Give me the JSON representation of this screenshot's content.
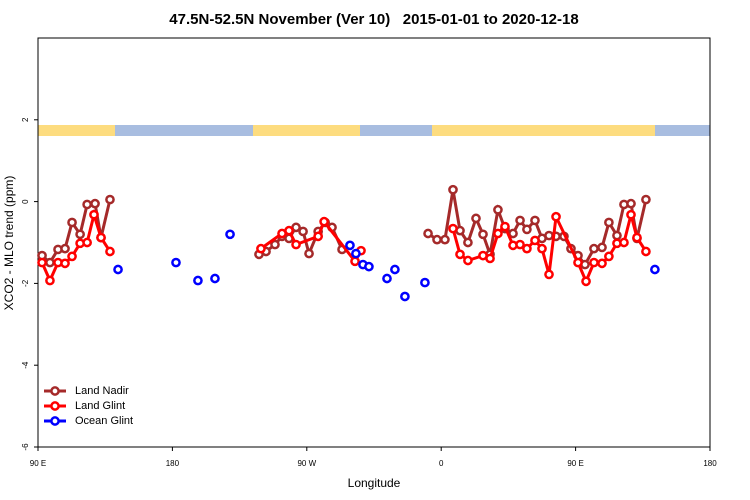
{
  "chart_data": {
    "type": "line",
    "title": "47.5N-52.5N November (Ver 10)   2015-01-01 to 2020-12-18",
    "x_label": "Longitude",
    "y_label": "XCO2 - MLO trend (ppm)",
    "xlim": [
      90,
      540
    ],
    "ylim": [
      -6,
      4
    ],
    "xticks": [
      {
        "value": 90,
        "label": "90 E"
      },
      180,
      {
        "value": 270,
        "label": "90 W"
      },
      {
        "value": 360,
        "label": "0"
      },
      {
        "value": 450,
        "label": "90 E"
      },
      {
        "value": 540,
        "label": "180"
      }
    ],
    "yticks": [
      -6,
      -4,
      -2,
      0,
      2
    ],
    "legend": "lower left",
    "series": [
      {
        "name": "Land Nadir",
        "color": "#a52a2a",
        "lines": true,
        "x": [
          92.7,
          98.0,
          103.4,
          108.1,
          112.8,
          118.2,
          122.9,
          128.2,
          132.2,
          138.2,
          null,
          238.0,
          242.7,
          248.7,
          253.4,
          258.1,
          262.8,
          267.5,
          271.5,
          277.6,
          282.3,
          286.9,
          293.6,
          null,
          351.2,
          357.2,
          362.5,
          367.9,
          372.6,
          377.9,
          383.3,
          388.0,
          392.7,
          398.0,
          402.7,
          408.1,
          412.8,
          417.4,
          422.8,
          427.5,
          432.2,
          436.9,
          442.2,
          446.9,
          451.6,
          456.3,
          462.3,
          467.7,
          472.3,
          477.7,
          482.4,
          487.1,
          491.1,
          497.1
        ],
        "values": [
          -1.32,
          -1.49,
          -1.17,
          -1.15,
          -0.51,
          -0.8,
          -0.07,
          -0.05,
          -0.88,
          0.05,
          null,
          -1.29,
          -1.22,
          -1.05,
          -0.85,
          -0.9,
          -0.63,
          -0.73,
          -1.27,
          -0.73,
          -0.51,
          -0.63,
          -1.17,
          null,
          -0.78,
          -0.93,
          -0.93,
          0.29,
          -0.71,
          -1.0,
          -0.41,
          -0.8,
          -1.29,
          -0.2,
          -0.66,
          -0.78,
          -0.46,
          -0.68,
          -0.46,
          -0.9,
          -0.83,
          -0.85,
          -0.85,
          -1.15,
          -1.32,
          -1.54,
          -1.15,
          -1.12,
          -0.51,
          -0.83,
          -0.07,
          -0.05,
          -0.9,
          0.05
        ]
      },
      {
        "name": "Land Glint",
        "color": "#ff0000",
        "lines": true,
        "x": [
          92.7,
          98.0,
          103.4,
          108.1,
          112.8,
          118.2,
          122.9,
          127.5,
          132.2,
          138.2,
          null,
          239.3,
          253.4,
          258.1,
          262.8,
          277.6,
          281.6,
          302.3,
          306.3,
          null,
          367.9,
          372.6,
          377.9,
          388.0,
          392.7,
          398.0,
          402.7,
          408.1,
          412.8,
          417.4,
          422.8,
          427.5,
          432.2,
          436.9,
          451.6,
          457.0,
          462.3,
          467.7,
          472.3,
          477.7,
          482.4,
          487.1,
          491.1,
          497.1
        ],
        "values": [
          -1.49,
          -1.93,
          -1.49,
          -1.51,
          -1.34,
          -1.02,
          -1.0,
          -0.32,
          -0.88,
          -1.22,
          null,
          -1.15,
          -0.78,
          -0.71,
          -1.05,
          -0.85,
          -0.49,
          -1.46,
          -1.2,
          null,
          -0.66,
          -1.29,
          -1.44,
          -1.32,
          -1.39,
          -0.78,
          -0.61,
          -1.07,
          -1.05,
          -1.15,
          -0.95,
          -1.15,
          -1.78,
          -0.37,
          -1.49,
          -1.95,
          -1.49,
          -1.51,
          -1.34,
          -1.02,
          -1.0,
          -0.32,
          -0.88,
          -1.22
        ]
      },
      {
        "name": "Ocean Glint",
        "color": "#0000ff",
        "lines": false,
        "x": [
          143.6,
          182.4,
          197.1,
          208.5,
          218.6,
          298.9,
          302.9,
          307.6,
          311.6,
          323.7,
          329.0,
          335.7,
          349.1,
          503.1
        ],
        "values": [
          -1.66,
          -1.49,
          -1.93,
          -1.88,
          -0.8,
          -1.07,
          -1.27,
          -1.54,
          -1.59,
          -1.88,
          -1.66,
          -2.32,
          -1.98,
          -1.66
        ]
      }
    ]
  }
}
